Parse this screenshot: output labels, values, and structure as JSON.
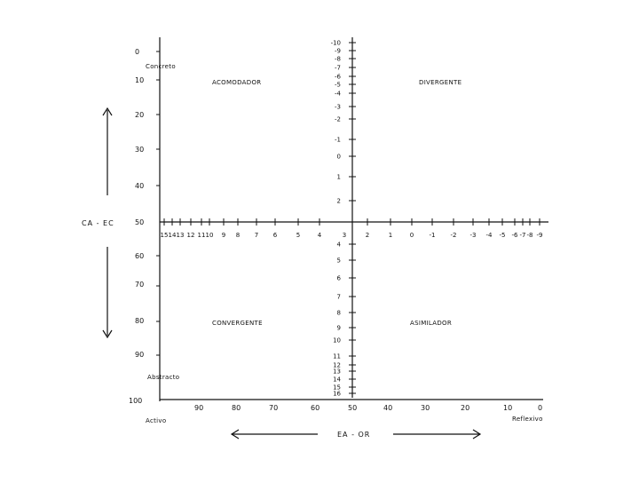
{
  "quadrants": {
    "top_left": "ACOMODADOR",
    "top_right": "DIVERGENTE",
    "bottom_left": "CONVERGENTE",
    "bottom_right": "ASIMILADOR"
  },
  "left_axis": {
    "ticks": [
      "0",
      "10",
      "20",
      "30",
      "40",
      "50",
      "60",
      "70",
      "80",
      "90",
      "100"
    ],
    "top_label": "Concreto",
    "bottom_label": "Abstracto"
  },
  "vertical_label": "CA - EC",
  "horizontal_label": "EA - OR",
  "bottom_axis": {
    "ticks": [
      "90",
      "80",
      "70",
      "60",
      "50",
      "40",
      "30",
      "20",
      "10",
      "0"
    ],
    "left_label": "Activo",
    "right_label": "Reflexivo"
  },
  "center_vertical": {
    "upper_ticks": [
      "-10",
      "-9",
      "-8",
      "-7",
      "-6",
      "-5",
      "-4",
      "-3",
      "-2",
      "-1",
      "0",
      "1",
      "2"
    ],
    "lower_ticks": [
      "4",
      "5",
      "6",
      "7",
      "8",
      "9",
      "10",
      "11",
      "12",
      "13",
      "14",
      "15",
      "16"
    ]
  },
  "center_horizontal": {
    "left_ticks": [
      "15",
      "14",
      "13",
      "12",
      "11",
      "10",
      "9",
      "8",
      "7",
      "6",
      "5",
      "4"
    ],
    "center_tick": "3",
    "right_ticks": [
      "2",
      "1",
      "0",
      "-1",
      "-2",
      "-3",
      "-4",
      "-5",
      "-6",
      "-7",
      "-8",
      "-9"
    ]
  }
}
